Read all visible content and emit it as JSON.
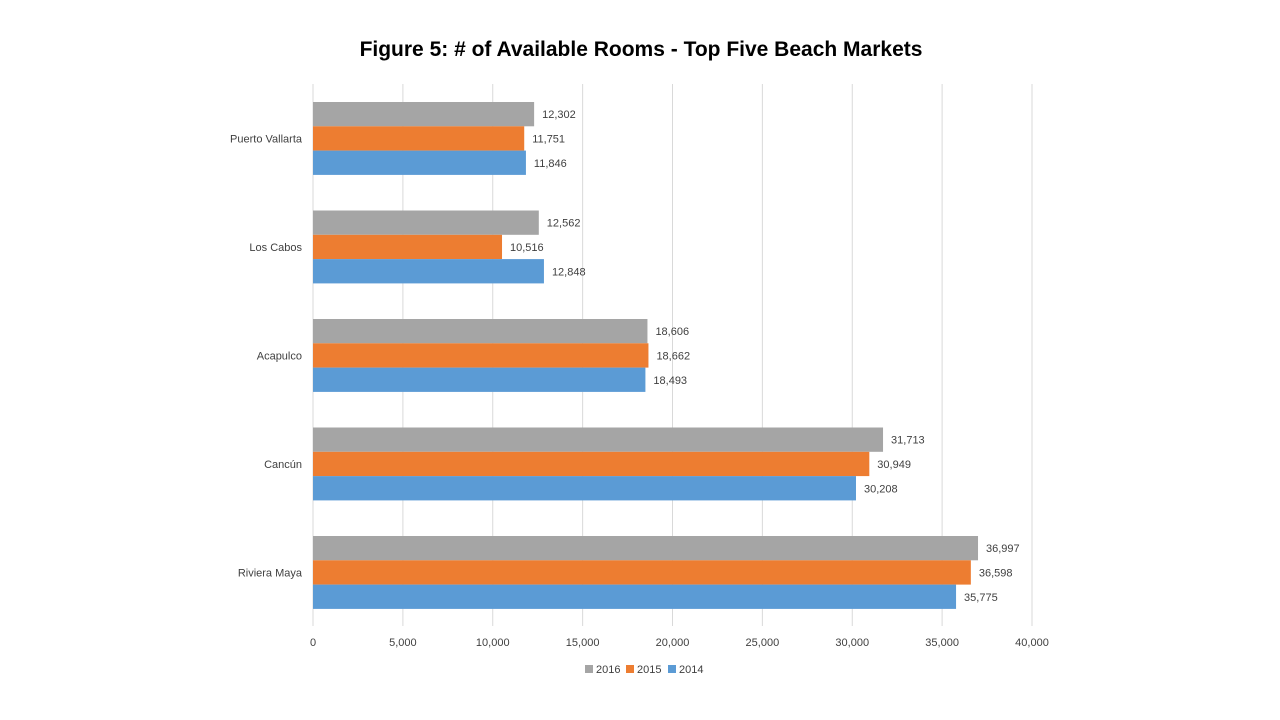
{
  "chart_data": {
    "type": "bar",
    "orientation": "horizontal",
    "title": "Figure 5: # of Available Rooms - Top Five Beach Markets",
    "categories": [
      "Puerto Vallarta",
      "Los Cabos",
      "Acapulco",
      "Cancún",
      "Riviera Maya"
    ],
    "series": [
      {
        "name": "2016",
        "color": "#a5a5a5",
        "values": [
          12302,
          12562,
          18606,
          31713,
          36997
        ],
        "labels": [
          "12,302",
          "12,562",
          "18,606",
          "31,713",
          "36,997"
        ]
      },
      {
        "name": "2015",
        "color": "#ed7d31",
        "values": [
          11751,
          10516,
          18662,
          30949,
          36598
        ],
        "labels": [
          "11,751",
          "10,516",
          "18,662",
          "30,949",
          "36,598"
        ]
      },
      {
        "name": "2014",
        "color": "#5b9bd5",
        "values": [
          11846,
          12848,
          18493,
          30208,
          35775
        ],
        "labels": [
          "11,846",
          "12,848",
          "18,493",
          "30,208",
          "35,775"
        ]
      }
    ],
    "xlim": [
      0,
      40000
    ],
    "xticks": [
      "0",
      "5,000",
      "10,000",
      "15,000",
      "20,000",
      "25,000",
      "30,000",
      "35,000",
      "40,000"
    ],
    "xlabel": "",
    "ylabel": "",
    "grid": "vertical",
    "legend": "bottom",
    "legend_order": [
      "2016",
      "2015",
      "2014"
    ]
  }
}
